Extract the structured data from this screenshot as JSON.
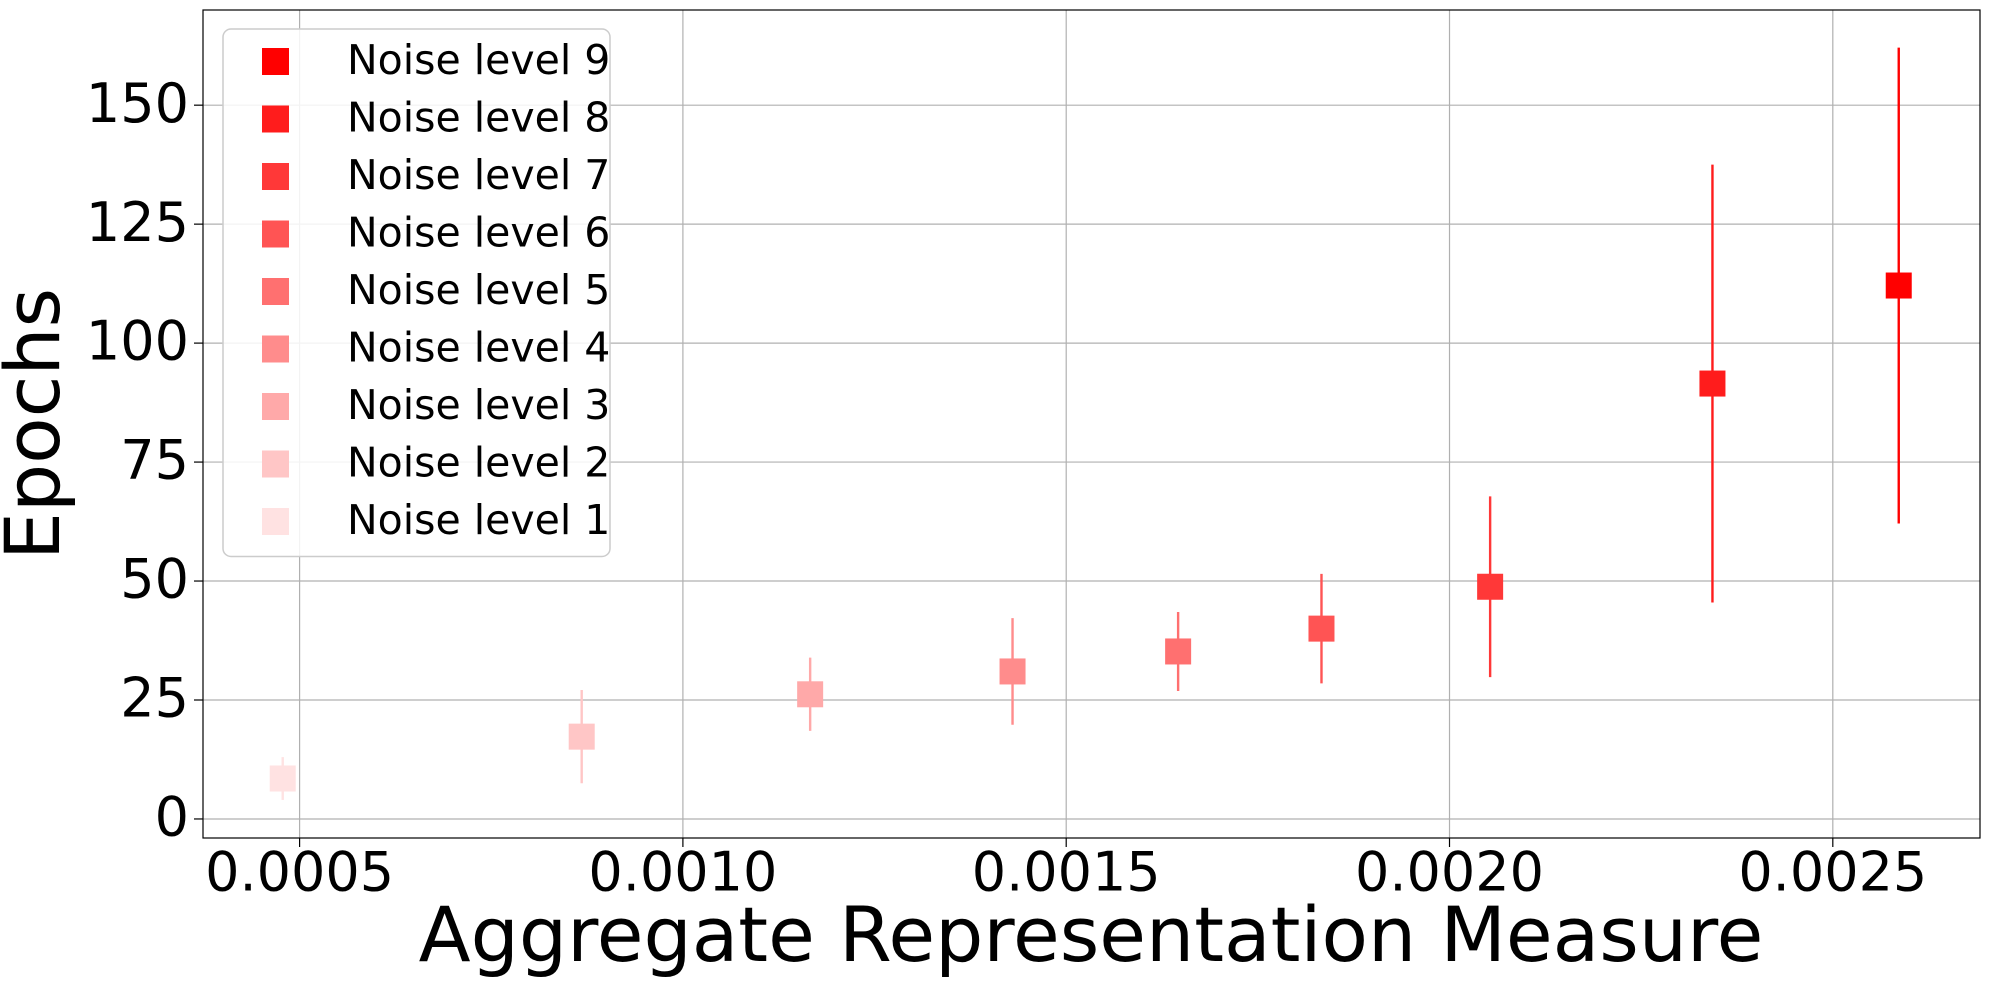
{
  "chart_data": {
    "type": "errorbar",
    "xlabel": "Aggregate Representation Measure",
    "ylabel": "Epochs",
    "xlim": [
      0.000374,
      0.002692
    ],
    "ylim": [
      -4,
      170
    ],
    "xticks": [
      {
        "value": 0.0005,
        "label": "0.0005"
      },
      {
        "value": 0.001,
        "label": "0.0010"
      },
      {
        "value": 0.0015,
        "label": "0.0015"
      },
      {
        "value": 0.002,
        "label": "0.0020"
      },
      {
        "value": 0.0025,
        "label": "0.0025"
      }
    ],
    "yticks": [
      0,
      25,
      50,
      75,
      100,
      125,
      150
    ],
    "grid": true,
    "legend_loc": "upper left",
    "series": [
      {
        "name": "Noise level 9",
        "color": "#ff0000",
        "x": [
          0.002586
        ],
        "values": [
          112.1
        ],
        "errors": [
          50
        ]
      },
      {
        "name": "Noise level 8",
        "color": "#ff1c1c",
        "x": [
          0.002343
        ],
        "values": [
          91.5
        ],
        "errors": [
          46
        ]
      },
      {
        "name": "Noise level 7",
        "color": "#ff3838",
        "x": [
          0.002053
        ],
        "values": [
          48.8
        ],
        "errors": [
          19
        ]
      },
      {
        "name": "Noise level 6",
        "color": "#ff5454",
        "x": [
          0.001833
        ],
        "values": [
          40.0
        ],
        "errors": [
          11.5
        ]
      },
      {
        "name": "Noise level 5",
        "color": "#ff7070",
        "x": [
          0.001646
        ],
        "values": [
          35.2
        ],
        "errors": [
          8.3
        ]
      },
      {
        "name": "Noise level 4",
        "color": "#ff8c8c",
        "x": [
          0.00143
        ],
        "values": [
          31.0
        ],
        "errors": [
          11.2
        ]
      },
      {
        "name": "Noise level 3",
        "color": "#ffa9a9",
        "x": [
          0.001166
        ],
        "values": [
          26.2
        ],
        "errors": [
          7.7
        ]
      },
      {
        "name": "Noise level 2",
        "color": "#ffc6c6",
        "x": [
          0.000868
        ],
        "values": [
          17.3
        ],
        "errors": [
          9.8
        ]
      },
      {
        "name": "Noise level 1",
        "color": "#ffe2e2",
        "x": [
          0.000478
        ],
        "values": [
          8.5
        ],
        "errors": [
          4.5
        ]
      }
    ]
  }
}
